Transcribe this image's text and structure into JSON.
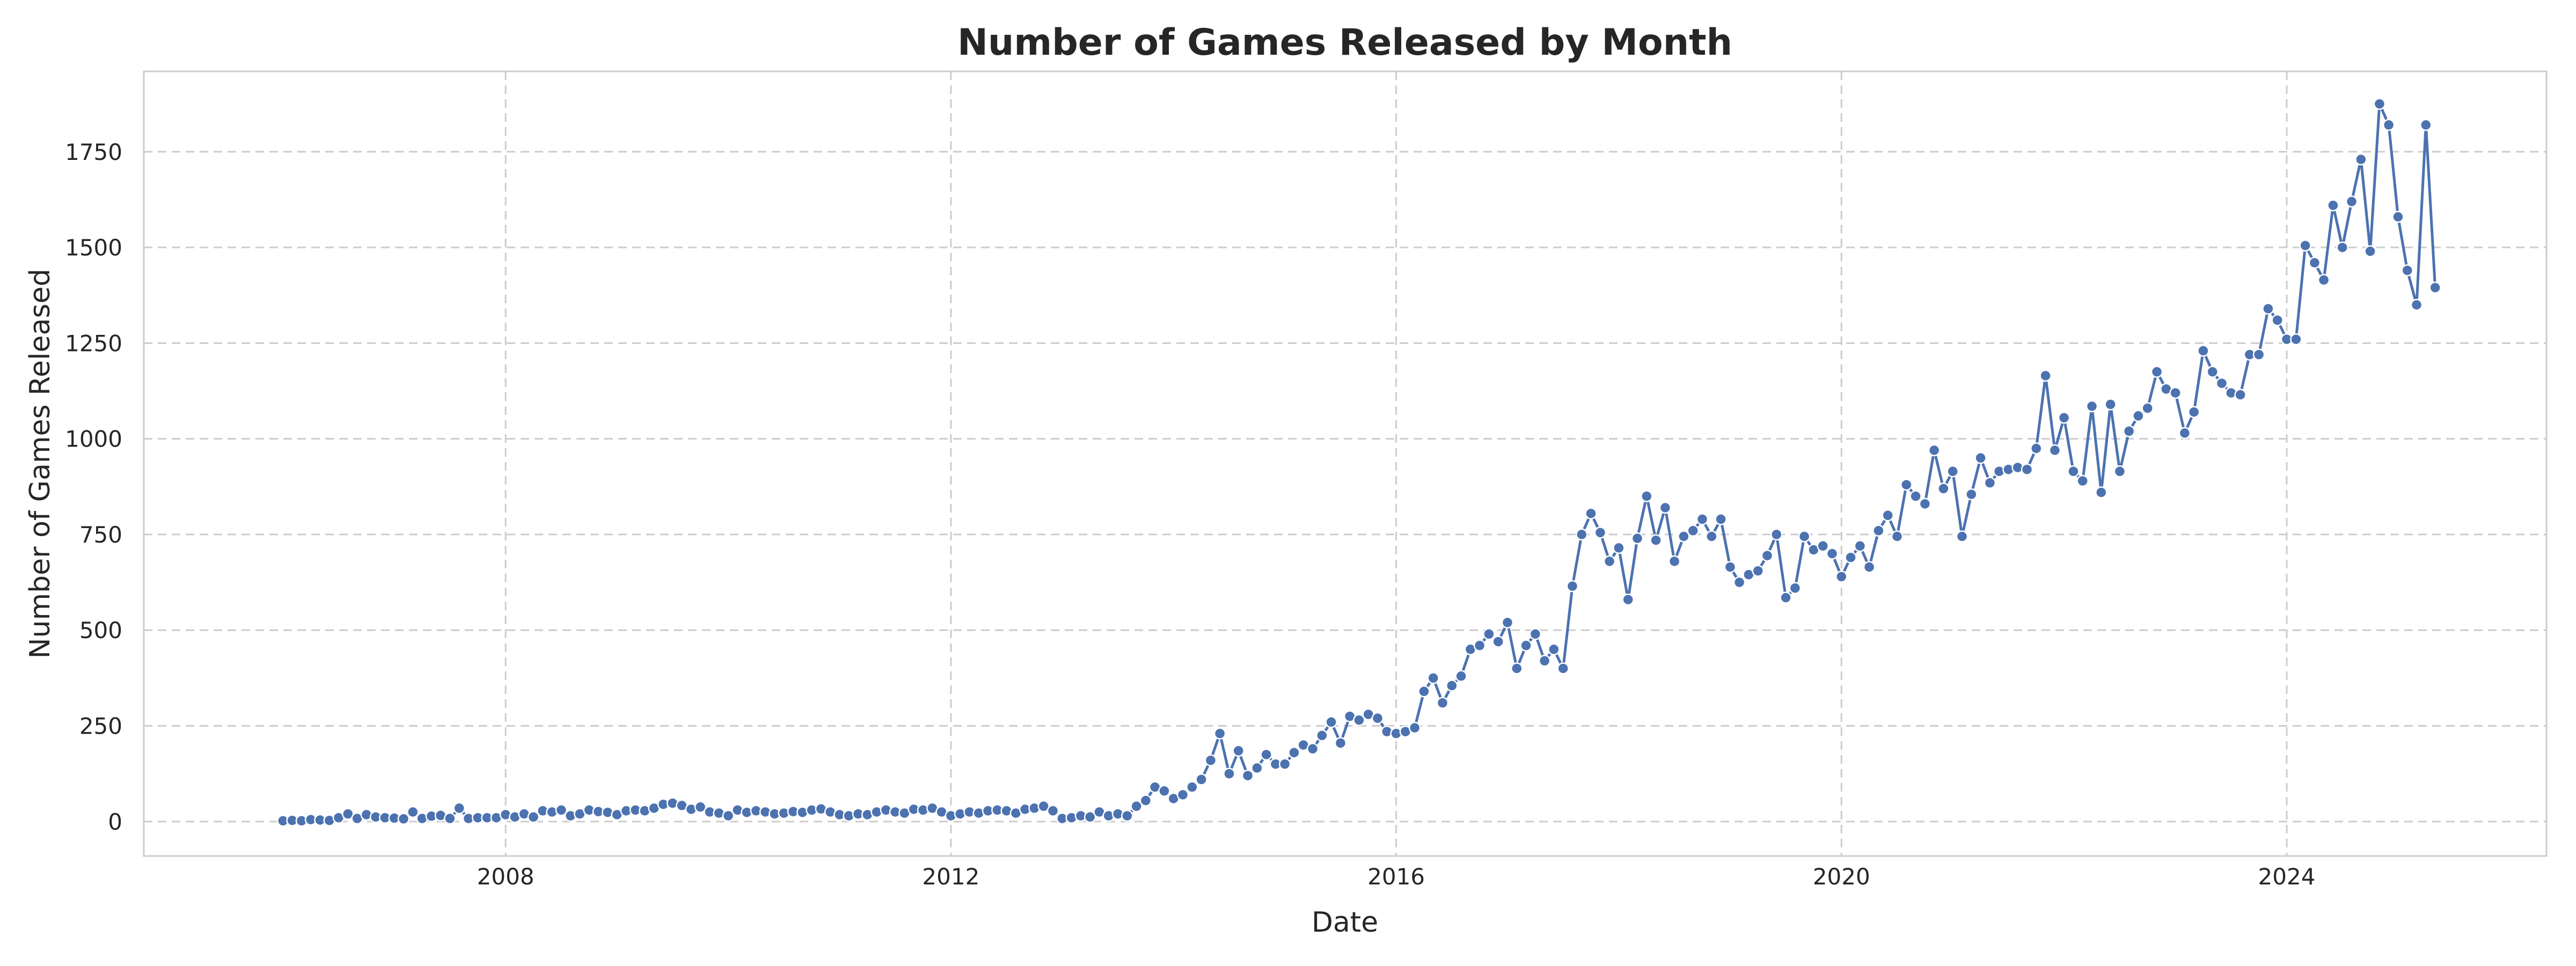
{
  "chart_data": {
    "type": "line",
    "title": "Number of Games Released by Month",
    "xlabel": "Date",
    "ylabel": "Number of Games Released",
    "x_start": "2006-01",
    "x_step": "1 month",
    "xlim": [
      "2004-10",
      "2026-05"
    ],
    "ylim": [
      -90,
      1960
    ],
    "x_ticks": [
      "2008",
      "2012",
      "2016",
      "2020",
      "2024"
    ],
    "y_ticks": [
      0,
      250,
      500,
      750,
      1000,
      1250,
      1500,
      1750
    ],
    "grid": true,
    "legend": "none",
    "series": [
      {
        "color": "#4c72b0",
        "marker": "circle",
        "values": [
          2,
          3,
          2,
          5,
          4,
          3,
          10,
          20,
          8,
          18,
          12,
          10,
          9,
          7,
          25,
          8,
          14,
          16,
          8,
          35,
          8,
          10,
          10,
          10,
          18,
          12,
          20,
          12,
          28,
          25,
          30,
          15,
          20,
          30,
          26,
          24,
          18,
          28,
          30,
          28,
          35,
          45,
          48,
          42,
          32,
          38,
          25,
          22,
          15,
          30,
          24,
          28,
          25,
          20,
          22,
          26,
          24,
          30,
          33,
          25,
          18,
          15,
          20,
          18,
          25,
          30,
          25,
          22,
          32,
          30,
          35,
          25,
          15,
          20,
          25,
          22,
          28,
          30,
          28,
          22,
          32,
          35,
          40,
          28,
          8,
          10,
          15,
          12,
          25,
          15,
          20,
          15,
          40,
          55,
          90,
          80,
          60,
          70,
          90,
          110,
          160,
          230,
          125,
          185,
          120,
          140,
          175,
          150,
          150,
          180,
          200,
          190,
          225,
          260,
          205,
          275,
          265,
          280,
          270,
          235,
          230,
          235,
          245,
          340,
          375,
          310,
          355,
          380,
          450,
          460,
          490,
          470,
          520,
          400,
          460,
          490,
          420,
          450,
          400,
          615,
          750,
          805,
          755,
          680,
          715,
          580,
          740,
          850,
          735,
          820,
          680,
          745,
          760,
          790,
          745,
          790,
          665,
          625,
          645,
          655,
          695,
          750,
          585,
          610,
          745,
          710,
          720,
          700,
          640,
          690,
          720,
          665,
          760,
          800,
          745,
          880,
          850,
          830,
          970,
          870,
          915,
          745,
          855,
          950,
          885,
          915,
          920,
          925,
          920,
          975,
          1165,
          970,
          1055,
          915,
          890,
          1085,
          860,
          1090,
          915,
          1020,
          1060,
          1080,
          1175,
          1130,
          1120,
          1015,
          1070,
          1230,
          1175,
          1145,
          1120,
          1115,
          1220,
          1220,
          1340,
          1310,
          1260,
          1260,
          1505,
          1460,
          1415,
          1610,
          1500,
          1620,
          1730,
          1490,
          1875,
          1820,
          1580,
          1440,
          1350,
          1820,
          1395
        ]
      }
    ]
  }
}
